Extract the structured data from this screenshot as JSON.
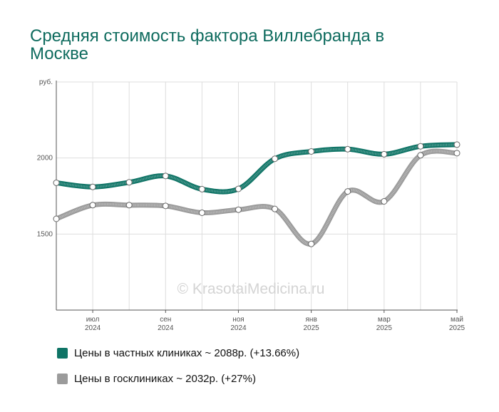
{
  "title": "Средняя стоимость фактора Виллебранда в Москве",
  "watermark": "© KrasotaiMedicina.ru",
  "colors": {
    "title": "#0e6b5e",
    "private": "#0f7466",
    "public": "#9b9b9b",
    "grid": "#dddddd"
  },
  "chart_data": {
    "type": "line",
    "y_unit": "руб.",
    "ylim": [
      1000,
      2500
    ],
    "y_ticks": [
      1500,
      2000
    ],
    "x": [
      "2024-06",
      "2024-07",
      "2024-08",
      "2024-09",
      "2024-10",
      "2024-11",
      "2024-12",
      "2025-01",
      "2025-02",
      "2025-03",
      "2025-04",
      "2025-05"
    ],
    "x_tick_labels": [
      {
        "at": "2024-07",
        "month": "июл",
        "year": "2024"
      },
      {
        "at": "2024-09",
        "month": "сен",
        "year": "2024"
      },
      {
        "at": "2024-11",
        "month": "ноя",
        "year": "2024"
      },
      {
        "at": "2025-01",
        "month": "янв",
        "year": "2025"
      },
      {
        "at": "2025-03",
        "month": "мар",
        "year": "2025"
      },
      {
        "at": "2025-05",
        "month": "май",
        "year": "2025"
      }
    ],
    "grid": true,
    "legend_position": "bottom",
    "series": [
      {
        "name": "Цены в частных клиниках ~ 2088р. (+13.66%)",
        "color": "#0f7466",
        "values": [
          1837,
          1810,
          1840,
          1882,
          1795,
          1797,
          1995,
          2043,
          2058,
          2025,
          2077,
          2088
        ]
      },
      {
        "name": "Цены в госклиниках ~ 2032р. (+27%)",
        "color": "#9b9b9b",
        "values": [
          1600,
          1690,
          1690,
          1685,
          1640,
          1660,
          1665,
          1435,
          1780,
          1715,
          2018,
          2032
        ]
      }
    ]
  }
}
